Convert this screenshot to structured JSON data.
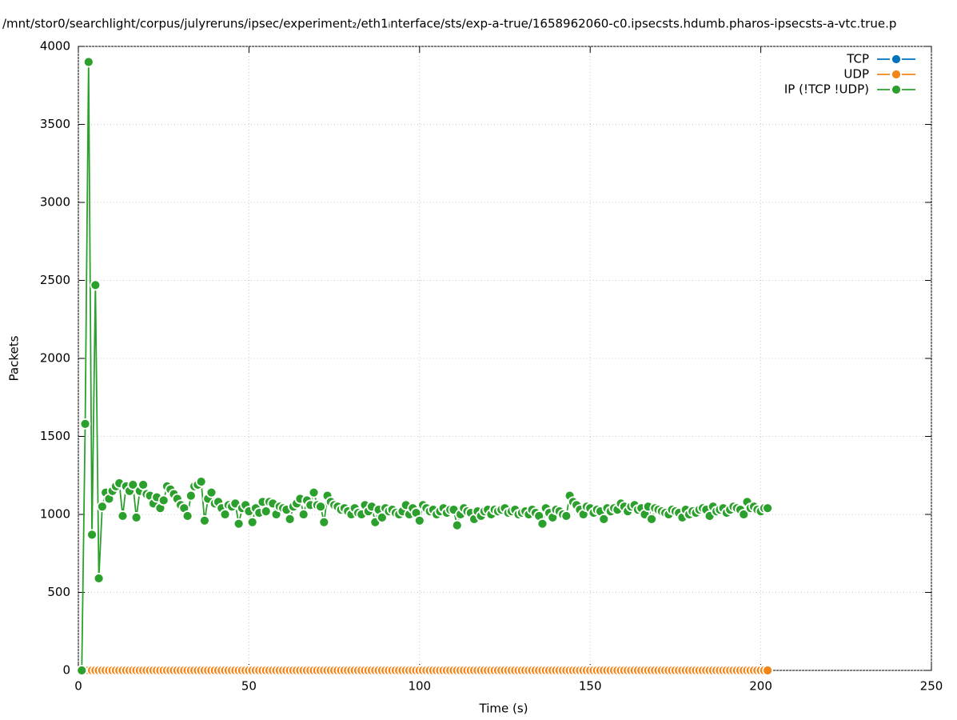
{
  "chart_data": {
    "type": "line",
    "title": "/mnt/stor0/searchlight/corpus/julyreruns/ipsec/experiment₂/eth1ᵢnterface/sts/exp-a-true/1658962060-c0.ipsecsts.hdumb.pharos-ipsecsts-a-vtc.true.p",
    "x_label": "Time (s)",
    "y_label": "Packets",
    "xlim": [
      0,
      250
    ],
    "xticks": [
      0,
      50,
      100,
      150,
      200,
      250
    ],
    "ylim": [
      0,
      4000
    ],
    "yticks": [
      0,
      500,
      1000,
      1500,
      2000,
      2500,
      3000,
      3500,
      4000
    ],
    "grid": true,
    "legend": "top-right",
    "x": [
      1,
      2,
      3,
      4,
      5,
      6,
      7,
      8,
      9,
      10,
      11,
      12,
      13,
      14,
      15,
      16,
      17,
      18,
      19,
      20,
      21,
      22,
      23,
      24,
      25,
      26,
      27,
      28,
      29,
      30,
      31,
      32,
      33,
      34,
      35,
      36,
      37,
      38,
      39,
      40,
      41,
      42,
      43,
      44,
      45,
      46,
      47,
      48,
      49,
      50,
      51,
      52,
      53,
      54,
      55,
      56,
      57,
      58,
      59,
      60,
      61,
      62,
      63,
      64,
      65,
      66,
      67,
      68,
      69,
      70,
      71,
      72,
      73,
      74,
      75,
      76,
      77,
      78,
      79,
      80,
      81,
      82,
      83,
      84,
      85,
      86,
      87,
      88,
      89,
      90,
      91,
      92,
      93,
      94,
      95,
      96,
      97,
      98,
      99,
      100,
      101,
      102,
      103,
      104,
      105,
      106,
      107,
      108,
      109,
      110,
      111,
      112,
      113,
      114,
      115,
      116,
      117,
      118,
      119,
      120,
      121,
      122,
      123,
      124,
      125,
      126,
      127,
      128,
      129,
      130,
      131,
      132,
      133,
      134,
      135,
      136,
      137,
      138,
      139,
      140,
      141,
      142,
      143,
      144,
      145,
      146,
      147,
      148,
      149,
      150,
      151,
      152,
      153,
      154,
      155,
      156,
      157,
      158,
      159,
      160,
      161,
      162,
      163,
      164,
      165,
      166,
      167,
      168,
      169,
      170,
      171,
      172,
      173,
      174,
      175,
      176,
      177,
      178,
      179,
      180,
      181,
      182,
      183,
      184,
      185,
      186,
      187,
      188,
      189,
      190,
      191,
      192,
      193,
      194,
      195,
      196,
      197,
      198,
      199,
      200,
      201,
      202
    ],
    "series": [
      {
        "name": "TCP",
        "color": "#0072bd",
        "values": [
          0,
          0,
          0,
          0,
          0,
          0,
          0,
          0,
          0,
          0,
          0,
          0,
          0,
          0,
          0,
          0,
          0,
          0,
          0,
          0,
          0,
          0,
          0,
          0,
          0,
          0,
          0,
          0,
          0,
          0,
          0,
          0,
          0,
          0,
          0,
          0,
          0,
          0,
          0,
          0,
          0,
          0,
          0,
          0,
          0,
          0,
          0,
          0,
          0,
          0,
          0,
          0,
          0,
          0,
          0,
          0,
          0,
          0,
          0,
          0,
          0,
          0,
          0,
          0,
          0,
          0,
          0,
          0,
          0,
          0,
          0,
          0,
          0,
          0,
          0,
          0,
          0,
          0,
          0,
          0,
          0,
          0,
          0,
          0,
          0,
          0,
          0,
          0,
          0,
          0,
          0,
          0,
          0,
          0,
          0,
          0,
          0,
          0,
          0,
          0,
          0,
          0,
          0,
          0,
          0,
          0,
          0,
          0,
          0,
          0,
          0,
          0,
          0,
          0,
          0,
          0,
          0,
          0,
          0,
          0,
          0,
          0,
          0,
          0,
          0,
          0,
          0,
          0,
          0,
          0,
          0,
          0,
          0,
          0,
          0,
          0,
          0,
          0,
          0,
          0,
          0,
          0,
          0,
          0,
          0,
          0,
          0,
          0,
          0,
          0,
          0,
          0,
          0,
          0,
          0,
          0,
          0,
          0,
          0,
          0,
          0,
          0,
          0,
          0,
          0,
          0,
          0,
          0,
          0,
          0,
          0,
          0,
          0,
          0,
          0,
          0,
          0,
          0,
          0,
          0,
          0,
          0,
          0,
          0,
          0,
          0,
          0,
          0,
          0,
          0,
          0,
          0,
          0,
          0,
          0,
          0,
          0,
          0,
          0,
          0,
          0,
          0
        ]
      },
      {
        "name": "UDP",
        "color": "#f28518",
        "values": [
          0,
          0,
          0,
          0,
          0,
          0,
          0,
          0,
          0,
          0,
          0,
          0,
          0,
          0,
          0,
          0,
          0,
          0,
          0,
          0,
          0,
          0,
          0,
          0,
          0,
          0,
          0,
          0,
          0,
          0,
          0,
          0,
          0,
          0,
          0,
          0,
          0,
          0,
          0,
          0,
          0,
          0,
          0,
          0,
          0,
          0,
          0,
          0,
          0,
          0,
          0,
          0,
          0,
          0,
          0,
          0,
          0,
          0,
          0,
          0,
          0,
          0,
          0,
          0,
          0,
          0,
          0,
          0,
          0,
          0,
          0,
          0,
          0,
          0,
          0,
          0,
          0,
          0,
          0,
          0,
          0,
          0,
          0,
          0,
          0,
          0,
          0,
          0,
          0,
          0,
          0,
          0,
          0,
          0,
          0,
          0,
          0,
          0,
          0,
          0,
          0,
          0,
          0,
          0,
          0,
          0,
          0,
          0,
          0,
          0,
          0,
          0,
          0,
          0,
          0,
          0,
          0,
          0,
          0,
          0,
          0,
          0,
          0,
          0,
          0,
          0,
          0,
          0,
          0,
          0,
          0,
          0,
          0,
          0,
          0,
          0,
          0,
          0,
          0,
          0,
          0,
          0,
          0,
          0,
          0,
          0,
          0,
          0,
          0,
          0,
          0,
          0,
          0,
          0,
          0,
          0,
          0,
          0,
          0,
          0,
          0,
          0,
          0,
          0,
          0,
          0,
          0,
          0,
          0,
          0,
          0,
          0,
          0,
          0,
          0,
          0,
          0,
          0,
          0,
          0,
          0,
          0,
          0,
          0,
          0,
          0,
          0,
          0,
          0,
          0,
          0,
          0,
          0,
          0,
          0,
          0,
          0,
          0,
          0,
          0,
          0,
          0
        ]
      },
      {
        "name": "IP (!TCP  !UDP)",
        "color": "#2ca02c",
        "values": [
          0,
          1580,
          3900,
          870,
          2470,
          590,
          1050,
          1140,
          1100,
          1150,
          1180,
          1200,
          990,
          1180,
          1150,
          1190,
          980,
          1150,
          1190,
          1130,
          1120,
          1070,
          1110,
          1040,
          1090,
          1180,
          1160,
          1130,
          1100,
          1060,
          1040,
          990,
          1120,
          1180,
          1190,
          1210,
          960,
          1100,
          1140,
          1070,
          1080,
          1040,
          1000,
          1060,
          1050,
          1070,
          940,
          1040,
          1060,
          1020,
          950,
          1040,
          1010,
          1080,
          1020,
          1080,
          1070,
          1000,
          1050,
          1040,
          1030,
          970,
          1050,
          1070,
          1100,
          1000,
          1090,
          1060,
          1140,
          1060,
          1050,
          950,
          1120,
          1080,
          1060,
          1050,
          1030,
          1040,
          1020,
          1000,
          1040,
          1010,
          1000,
          1060,
          1020,
          1050,
          950,
          1030,
          980,
          1040,
          1020,
          1030,
          1010,
          1000,
          1020,
          1060,
          1000,
          1040,
          1010,
          960,
          1060,
          1040,
          1020,
          1030,
          1000,
          1020,
          1040,
          1010,
          1030,
          1030,
          930,
          1000,
          1040,
          1020,
          1010,
          970,
          1020,
          990,
          1020,
          1030,
          1000,
          1030,
          1020,
          1030,
          1040,
          1010,
          1020,
          1030,
          1000,
          1010,
          1020,
          1000,
          1030,
          1010,
          990,
          940,
          1040,
          1010,
          980,
          1030,
          1020,
          1000,
          990,
          1120,
          1080,
          1060,
          1030,
          1000,
          1050,
          1040,
          1010,
          1030,
          1020,
          970,
          1040,
          1020,
          1040,
          1030,
          1070,
          1050,
          1020,
          1050,
          1060,
          1030,
          1040,
          1000,
          1050,
          970,
          1040,
          1030,
          1020,
          1010,
          1000,
          1030,
          1020,
          1010,
          980,
          1030,
          1000,
          1020,
          1010,
          1030,
          1040,
          1030,
          990,
          1050,
          1020,
          1030,
          1040,
          1010,
          1030,
          1050,
          1040,
          1030,
          1000,
          1080,
          1040,
          1050,
          1030,
          1020,
          1040,
          1040
        ]
      }
    ]
  }
}
